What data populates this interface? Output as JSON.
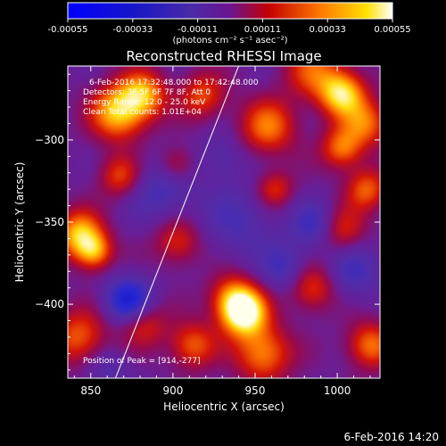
{
  "colorbar": {
    "tick_labels": [
      "-0.00055",
      "-0.00033",
      "-0.00011",
      "0.00011",
      "0.00033",
      "0.00055"
    ],
    "units_label": "(photons cm⁻² s⁻¹ asec⁻²)",
    "range": [
      -0.00055,
      0.00055
    ]
  },
  "chart_data": {
    "type": "heatmap",
    "title": "Reconstructed RHESSI Image",
    "xlabel": "Heliocentric X (arcsec)",
    "ylabel": "Heliocentric Y (arcsec)",
    "xlim": [
      836,
      1026
    ],
    "ylim": [
      -445,
      -255
    ],
    "x_ticks": [
      850,
      900,
      950,
      1000
    ],
    "y_ticks": [
      -300,
      -350,
      -400
    ],
    "x_tick_labels": [
      "850",
      "900",
      "950",
      "1000"
    ],
    "y_tick_labels": [
      "−300",
      "−350",
      "−400"
    ],
    "annotations": [
      "6-Feb-2016 17:32:48.000 to 17:42:48.000",
      "Detectors: 3F 5F 6F 7F 8F, Att 0",
      "Energy Range: 12.0 - 25.0 keV",
      "Clean    Total counts: 1.01E+04"
    ],
    "peak_label": "Position of Peak = [914,-277]",
    "peak": [
      914,
      -277
    ],
    "limb_line": [
      [
        865,
        -445
      ],
      [
        940,
        -255
      ]
    ],
    "blobs": [
      [
        843,
        -357,
        0.7,
        10
      ],
      [
        852,
        -368,
        0.6,
        8
      ],
      [
        867,
        -283,
        0.75,
        12
      ],
      [
        882,
        -272,
        0.6,
        10
      ],
      [
        868,
        -322,
        0.45,
        9
      ],
      [
        918,
        -273,
        0.45,
        10
      ],
      [
        902,
        -315,
        0.35,
        8
      ],
      [
        958,
        -292,
        0.55,
        12
      ],
      [
        962,
        -330,
        0.4,
        8
      ],
      [
        985,
        -258,
        0.45,
        12
      ],
      [
        1003,
        -272,
        0.8,
        10
      ],
      [
        1018,
        -290,
        0.5,
        10
      ],
      [
        1003,
        -305,
        0.55,
        9
      ],
      [
        1018,
        -330,
        0.5,
        9
      ],
      [
        1003,
        -355,
        0.4,
        10
      ],
      [
        903,
        -362,
        0.4,
        10
      ],
      [
        936,
        -395,
        0.45,
        10
      ],
      [
        943,
        -405,
        1.0,
        10
      ],
      [
        955,
        -430,
        0.6,
        12
      ],
      [
        882,
        -412,
        0.4,
        10
      ],
      [
        912,
        -425,
        0.5,
        10
      ],
      [
        843,
        -420,
        0.5,
        12
      ],
      [
        985,
        -390,
        0.45,
        10
      ],
      [
        1020,
        -425,
        0.55,
        10
      ],
      [
        873,
        -398,
        -0.6,
        10
      ],
      [
        893,
        -330,
        -0.3,
        14
      ],
      [
        940,
        -350,
        -0.25,
        16
      ],
      [
        986,
        -352,
        -0.35,
        10
      ],
      [
        968,
        -378,
        -0.3,
        10
      ],
      [
        1010,
        -380,
        -0.3,
        12
      ],
      [
        930,
        -310,
        -0.2,
        10
      ],
      [
        860,
        -440,
        -0.2,
        10
      ]
    ],
    "colormap": "blue-purple-red-yellow-white"
  },
  "timestamp": "6-Feb-2016 14:20"
}
